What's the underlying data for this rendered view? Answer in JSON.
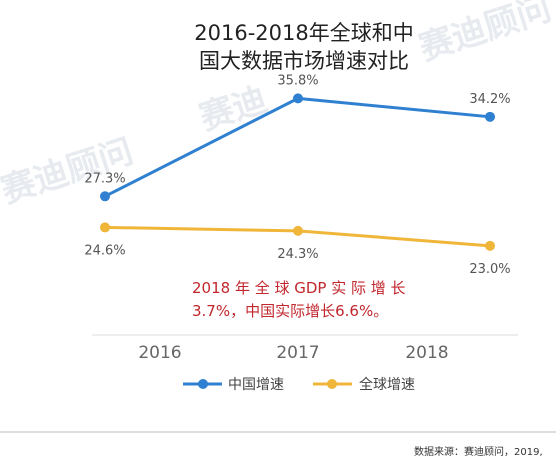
{
  "chart_data": {
    "type": "line",
    "title": [
      "2016-2018年全球和中",
      "国大数据市场增速对比"
    ],
    "categories": [
      "2016",
      "2017",
      "2018"
    ],
    "series": [
      {
        "name": "中国增速",
        "color": "#2f80d0",
        "values": [
          27.3,
          35.8,
          34.2
        ],
        "labels": [
          "27.3%",
          "35.8%",
          "34.2%"
        ]
      },
      {
        "name": "全球增速",
        "color": "#f0b63a",
        "values": [
          24.6,
          24.3,
          23.0
        ],
        "labels": [
          "24.6%",
          "24.3%",
          "23.0%"
        ]
      }
    ],
    "annotation": [
      "2018 年 全 球 GDP 实 际 增 长",
      "3.7%，中国实际增长6.6%。"
    ],
    "ylim": [
      15,
      40
    ],
    "grid": false,
    "legend_position": "bottom"
  },
  "source": "数据来源：赛迪顾问，2019,",
  "watermark": [
    "赛迪顾问",
    "赛迪",
    "赛迪顾问"
  ]
}
